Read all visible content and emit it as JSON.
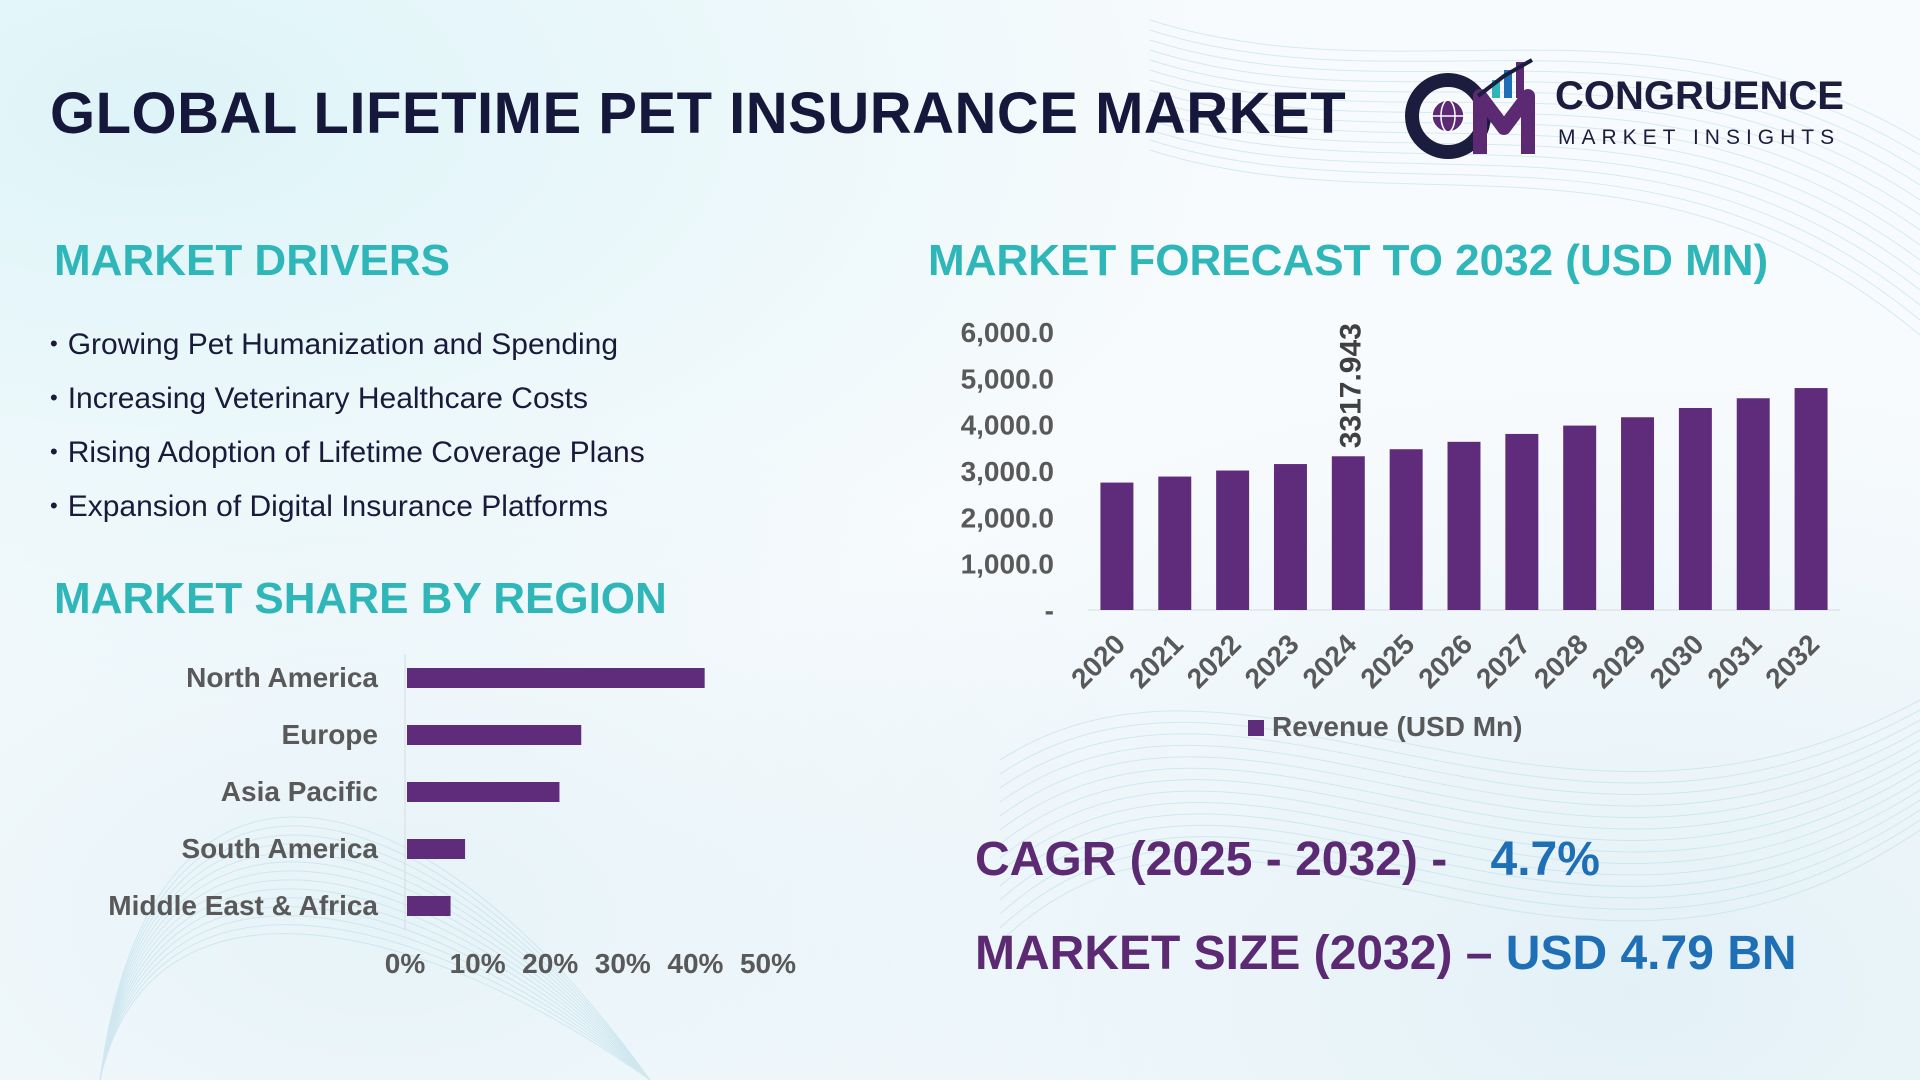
{
  "title": "GLOBAL LIFETIME PET INSURANCE MARKET",
  "logo": {
    "name": "CONGRUENCE",
    "tagline": "MARKET INSIGHTS"
  },
  "drivers": {
    "heading": "MARKET DRIVERS",
    "items": [
      "Growing Pet Humanization and Spending",
      "Increasing Veterinary Healthcare Costs",
      "Rising Adoption of Lifetime Coverage Plans",
      "Expansion of Digital Insurance Platforms"
    ]
  },
  "region": {
    "heading": "MARKET SHARE BY REGION"
  },
  "forecast": {
    "heading": "MARKET FORECAST TO 2032 (USD MN)"
  },
  "stats": {
    "cagr_label": "CAGR (2025 - 2032) -",
    "cagr_value": "4.7%",
    "size_label": "MARKET SIZE (2032) –",
    "size_value": "USD 4.79 BN"
  },
  "colors": {
    "bar": "#5f2c7c",
    "heading": "#2fb6b9",
    "stat_label": "#5b2a73",
    "stat_value": "#1e6fb6",
    "title": "#15183a"
  },
  "chart_data": [
    {
      "type": "bar",
      "orientation": "horizontal",
      "categories": [
        "North America",
        "Europe",
        "Asia Pacific",
        "South America",
        "Middle East & Africa"
      ],
      "values": [
        41,
        24,
        21,
        8,
        6
      ],
      "xlim": [
        0,
        50
      ],
      "xticks": [
        "0%",
        "10%",
        "20%",
        "30%",
        "40%",
        "50%"
      ],
      "grid": false
    },
    {
      "type": "bar",
      "categories": [
        "2020",
        "2021",
        "2022",
        "2023",
        "2024",
        "2025",
        "2026",
        "2027",
        "2028",
        "2029",
        "2030",
        "2031",
        "2032"
      ],
      "values": [
        2750,
        2880,
        3010,
        3150,
        3317.943,
        3470,
        3630,
        3800,
        3980,
        4160,
        4360,
        4570,
        4790
      ],
      "ylim": [
        0,
        6000
      ],
      "yticks": [
        "-",
        "1,000.0",
        "2,000.0",
        "3,000.0",
        "4,000.0",
        "5,000.0",
        "6,000.0"
      ],
      "data_labels": [
        {
          "category": "2024",
          "text": "3317.943"
        }
      ],
      "legend": {
        "label": "Revenue (USD Mn)",
        "position": "bottom"
      },
      "grid": false
    }
  ]
}
